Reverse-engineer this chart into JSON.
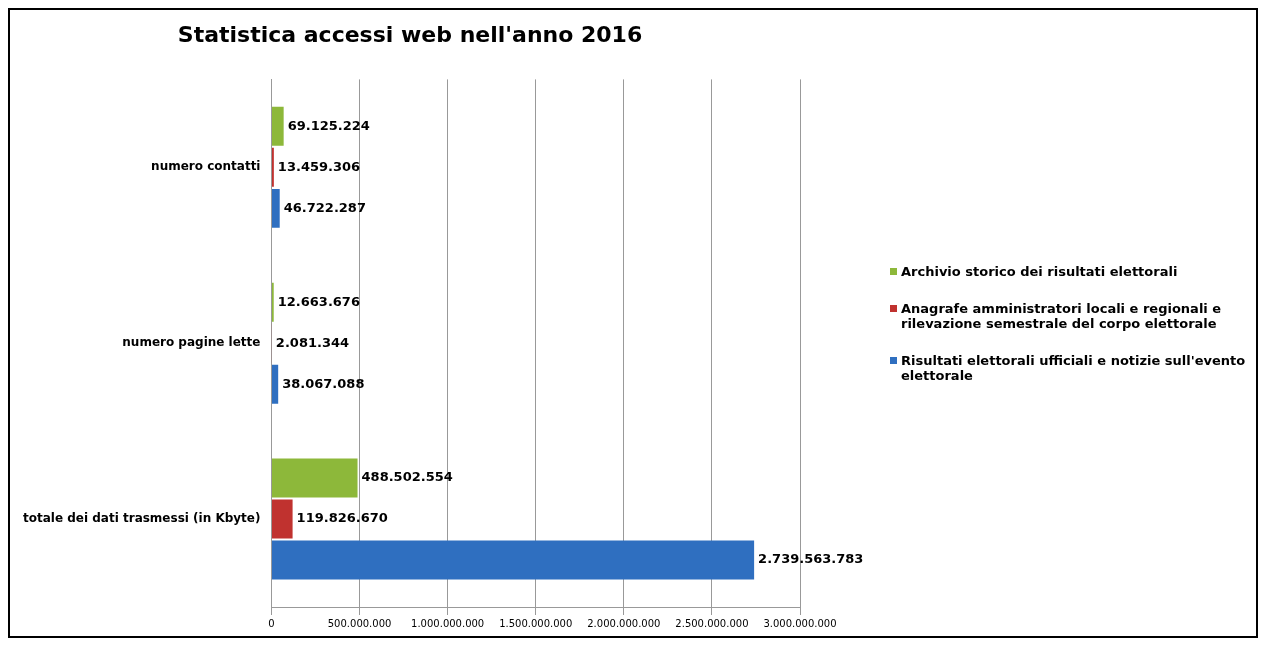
{
  "chart_data": {
    "type": "bar",
    "orientation": "horizontal",
    "title": "Statistica accessi web nell'anno 2016",
    "categories": [
      "numero contatti",
      "numero pagine lette",
      "totale dei dati trasmessi (in Kbyte)"
    ],
    "series": [
      {
        "name": "Archivio storico dei risultati elettorali",
        "color": "#8db83a",
        "values": [
          69125224,
          12663676,
          488502554
        ],
        "value_labels": [
          "69.125.224",
          "12.663.676",
          "488.502.554"
        ]
      },
      {
        "name": "Anagrafe amministratori locali e regionali e rilevazione semestrale del corpo elettorale",
        "color": "#c0322f",
        "values": [
          13459306,
          2081344,
          119826670
        ],
        "value_labels": [
          "13.459.306",
          "2.081.344",
          "119.826.670"
        ]
      },
      {
        "name": "Risultati elettorali ufficiali e notizie sull'evento elettorale",
        "color": "#2f6fc0",
        "values": [
          46722287,
          38067088,
          2739563783
        ],
        "value_labels": [
          "46.722.287",
          "38.067.088",
          "2.739.563.783"
        ]
      }
    ],
    "xlim": [
      0,
      3000000000
    ],
    "xticks": [
      0,
      {
        "value": 500000000,
        "label": "500.000.000"
      },
      {
        "value": 1000000000,
        "label": "1.000.000.000"
      },
      {
        "value": 1500000000,
        "label": "1.500.000.000"
      },
      {
        "value": 2000000000,
        "label": "2.000.000.000"
      },
      {
        "value": 2500000000,
        "label": "2.500.000.000"
      },
      {
        "value": 3000000000,
        "label": "3.000.000.000"
      }
    ],
    "grid": "x",
    "legend": "right"
  }
}
